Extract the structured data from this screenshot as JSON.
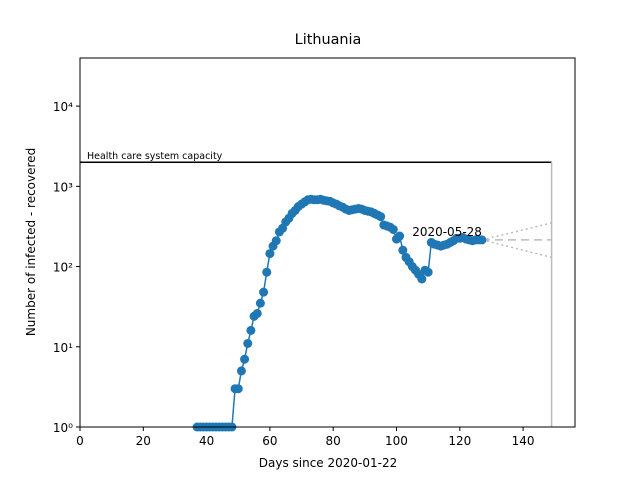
{
  "chart_data": {
    "type": "line",
    "title": "Lithuania",
    "xlabel": "Days since 2020-01-22",
    "ylabel": "Number of infected - recovered",
    "log_y": true,
    "xlim": [
      0,
      156.4
    ],
    "ylim": [
      1,
      39800
    ],
    "xticks": [
      0,
      20,
      40,
      60,
      80,
      100,
      120,
      140
    ],
    "yticks": [
      {
        "value": 1,
        "label": "10⁰"
      },
      {
        "value": 10,
        "label": "10¹"
      },
      {
        "value": 100,
        "label": "10²"
      },
      {
        "value": 1000,
        "label": "10³"
      },
      {
        "value": 10000,
        "label": "10⁴"
      }
    ],
    "series": [
      {
        "color": "#1f77b4",
        "x": [
          37,
          38,
          39,
          40,
          41,
          42,
          43,
          44,
          45,
          46,
          47,
          48,
          49,
          50,
          51,
          52,
          53,
          54,
          55,
          56,
          57,
          58,
          59,
          60,
          61,
          62,
          63,
          64,
          65,
          66,
          67,
          68,
          69,
          70,
          71,
          72,
          73,
          74,
          75,
          76,
          77,
          78,
          79,
          80,
          81,
          82,
          83,
          84,
          85,
          86,
          87,
          88,
          89,
          90,
          91,
          92,
          93,
          94,
          95,
          96,
          97,
          98,
          99,
          100,
          101,
          102,
          103,
          104,
          105,
          106,
          107,
          108,
          109,
          110,
          111,
          112,
          113,
          114,
          115,
          116,
          117,
          118,
          119,
          120,
          121,
          122,
          123,
          124,
          125,
          126,
          127
        ],
        "values": [
          1,
          1,
          1,
          1,
          1,
          1,
          1,
          1,
          1,
          1,
          1,
          1,
          3,
          3,
          5,
          7,
          11,
          16,
          24,
          26,
          35,
          48,
          85,
          145,
          180,
          210,
          270,
          300,
          360,
          400,
          460,
          500,
          560,
          600,
          640,
          680,
          690,
          680,
          680,
          690,
          670,
          660,
          650,
          620,
          600,
          570,
          550,
          520,
          500,
          510,
          520,
          530,
          520,
          500,
          490,
          480,
          460,
          440,
          420,
          330,
          320,
          310,
          290,
          220,
          240,
          160,
          130,
          115,
          100,
          90,
          80,
          70,
          90,
          85,
          200,
          190,
          185,
          180,
          185,
          190,
          200,
          210,
          225,
          225,
          230,
          220,
          215,
          210,
          215,
          215,
          215
        ]
      }
    ],
    "capacity": {
      "label": "Health care system capacity",
      "value": 2000,
      "x_end": 149
    },
    "projection": {
      "x": [
        127,
        149
      ],
      "center": [
        215,
        215
      ],
      "upper": [
        215,
        350
      ],
      "lower": [
        215,
        130
      ]
    },
    "annotation": {
      "text": "2020-05-28",
      "x": 127,
      "y": 215
    }
  }
}
